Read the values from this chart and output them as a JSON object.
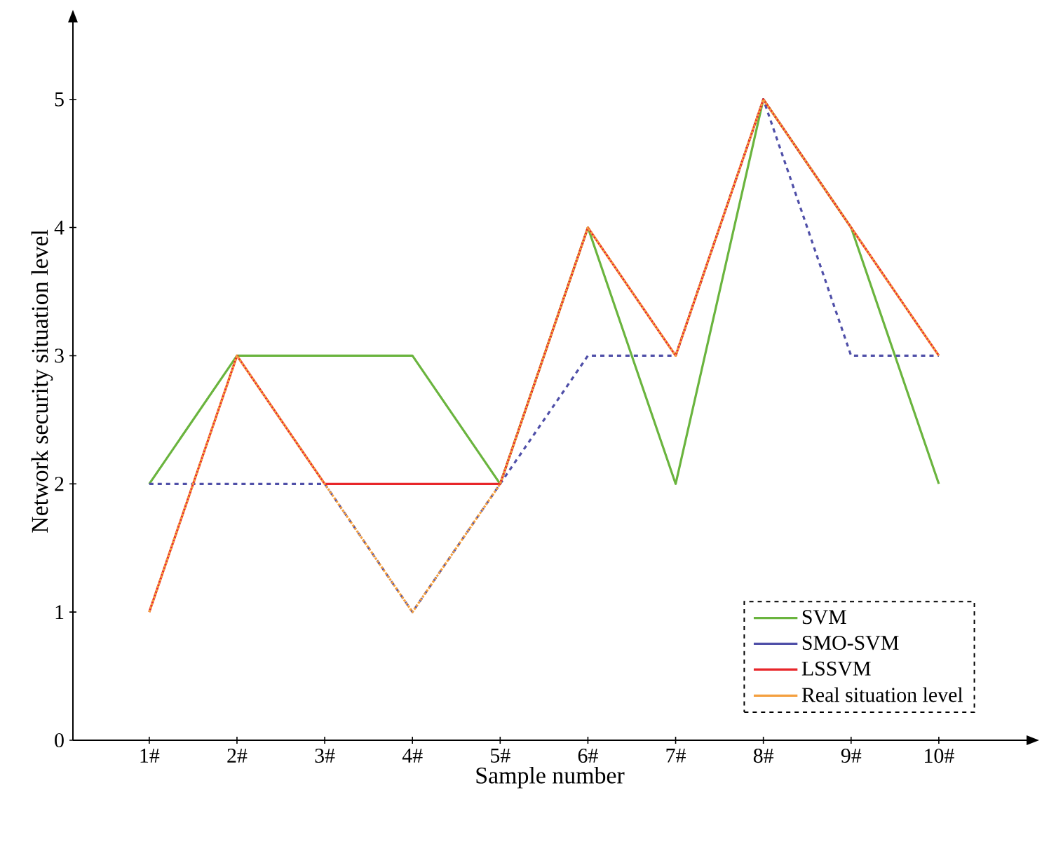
{
  "chart_data": {
    "type": "line",
    "xlabel": "Sample number",
    "ylabel": "Network security situation level",
    "categories": [
      "1#",
      "2#",
      "3#",
      "4#",
      "5#",
      "6#",
      "7#",
      "8#",
      "9#",
      "10#"
    ],
    "ylim": [
      0,
      5.6
    ],
    "yticks": [
      0,
      1,
      2,
      3,
      4,
      5
    ],
    "legend": "bottom right",
    "series": [
      {
        "name": "SVM",
        "color": "#6ab43e",
        "line_style": "solid",
        "values": [
          2,
          3,
          3,
          3,
          2,
          4,
          2,
          5,
          4,
          2
        ]
      },
      {
        "name": "SMO-SVM",
        "color": "#4f4fa8",
        "line_style": "dashed",
        "values": [
          2,
          2,
          2,
          1,
          2,
          3,
          3,
          5,
          3,
          3
        ]
      },
      {
        "name": "LSSVM",
        "color": "#e8262a",
        "line_style": "solid",
        "values": [
          1,
          3,
          2,
          2,
          2,
          4,
          3,
          5,
          4,
          3
        ]
      },
      {
        "name": "Real situation level",
        "color": "#f4a040",
        "line_style": "dotted",
        "values": [
          1,
          3,
          2,
          1,
          2,
          4,
          3,
          5,
          4,
          3
        ]
      }
    ]
  }
}
